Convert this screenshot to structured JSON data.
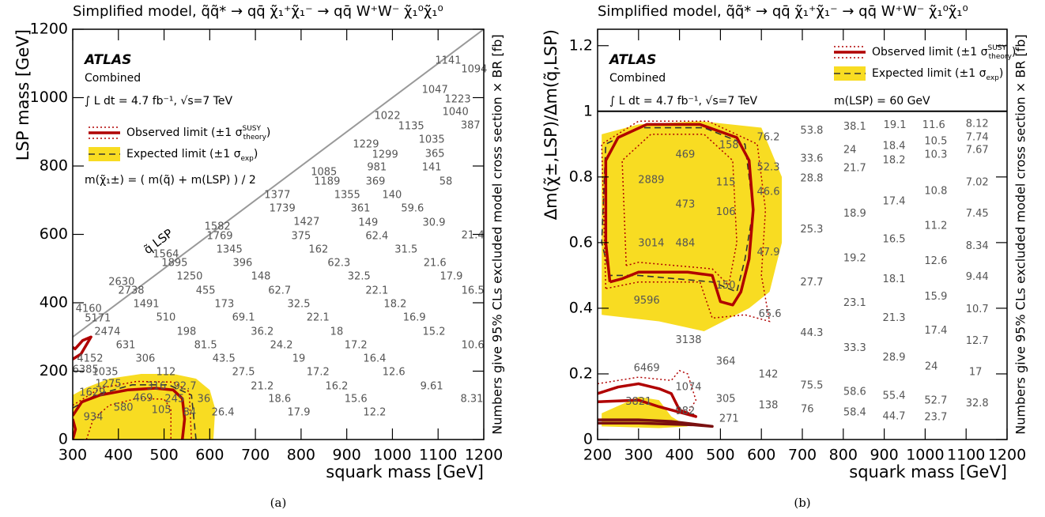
{
  "chart_data": [
    {
      "type": "contour",
      "title": "Simplified model, q̃q̃* → qq̄ χ̃₁⁺χ̃₁⁻ → qq̄ W⁺W⁻ χ̃₁⁰χ̃₁⁰",
      "xlabel": "squark mass [GeV]",
      "ylabel": "LSP mass [GeV]",
      "zlabel": "Numbers give 95% CLs excluded model cross section × BR [fb]",
      "experiment": "ATLAS",
      "label": "Combined",
      "lumi": "∫ L dt = 4.7 fb⁻¹, √s=7 TeV",
      "note": "m(χ̃₁±) = ( m(q̃) + m(LSP) ) / 2",
      "diagonal_label": "q̃ LSP",
      "caption": "(a)",
      "legend": [
        {
          "text": "Observed limit (±1 σ",
          "sup": "SUSY",
          "sub": "theory",
          "end": ")",
          "sample": "observed"
        },
        {
          "text": "Expected limit (±1 σ",
          "sub": "exp",
          "end": ")",
          "sample": "expected"
        }
      ],
      "xlim": [
        300,
        1200
      ],
      "ylim": [
        0,
        1200
      ],
      "xticks": [
        300,
        400,
        500,
        600,
        700,
        800,
        900,
        1000,
        1100,
        1200
      ],
      "yticks": [
        0,
        200,
        400,
        600,
        800,
        1000,
        1200
      ],
      "diagonal_line": {
        "x": [
          300,
          1200
        ],
        "y": [
          300,
          1200
        ]
      },
      "points": {
        "x": [
          1122,
          1179,
          1093,
          1143,
          1138,
          1171,
          989,
          1041,
          1086,
          1093,
          1086,
          1117,
          942,
          984,
          966,
          963,
          999,
          1044,
          1091,
          1176,
          850,
          857,
          901,
          930,
          947,
          966,
          1030,
          1093,
          1129,
          1176,
          748,
          759,
          812,
          800,
          838,
          883,
          927,
          966,
          1006,
          1048,
          1091,
          1176,
          617,
          622,
          643,
          672,
          712,
          753,
          795,
          837,
          878,
          920,
          961,
          1003,
          1086,
          1174,
          504,
          523,
          556,
          591,
          632,
          674,
          715,
          757,
          795,
          837,
          878,
          920,
          961,
          407,
          428,
          461,
          504,
          549,
          591,
          631,
          674,
          715,
          753,
          795,
          335,
          355,
          376,
          416,
          459,
          504,
          546,
          587,
          629,
          338,
          328,
          371,
          378,
          483,
          343,
          454,
          523,
          411,
          345,
          494,
          556
        ],
        "y": [
          1107,
          1082,
          1022,
          994,
          957,
          918,
          946,
          916,
          876,
          835,
          795,
          754,
          862,
          832,
          795,
          754,
          714,
          675,
          633,
          596,
          781,
          754,
          714,
          675,
          633,
          594,
          555,
          516,
          476,
          435,
          714,
          675,
          636,
          594,
          555,
          516,
          476,
          435,
          395,
          356,
          314,
          275,
          622,
          594,
          555,
          516,
          476,
          435,
          395,
          356,
          314,
          275,
          236,
          197,
          155,
          118,
          541,
          516,
          476,
          435,
          395,
          356,
          314,
          275,
          236,
          197,
          155,
          118,
          79,
          460,
          435,
          395,
          356,
          314,
          275,
          236,
          197,
          155,
          118,
          79,
          381,
          354,
          314,
          275,
          236,
          197,
          155,
          118,
          79,
          236,
          203,
          197,
          162,
          155,
          136,
          120,
          118,
          92,
          65,
          86,
          79
        ],
        "values": [
          1141,
          1094,
          1047,
          1223,
          1040,
          387,
          1022,
          1135,
          1035,
          365,
          141,
          58,
          1229,
          1299,
          981,
          369,
          140,
          59.6,
          30.9,
          21.4,
          1085,
          1189,
          1355,
          361,
          149,
          62.4,
          31.5,
          21.6,
          17.9,
          16.5,
          1377,
          1739,
          1427,
          375,
          162,
          62.3,
          32.5,
          22.1,
          18.2,
          16.9,
          15.2,
          10.6,
          1582,
          1769,
          1345,
          396,
          148,
          62.7,
          32.5,
          22.1,
          18,
          17.2,
          16.4,
          12.6,
          9.61,
          8.31,
          1564,
          1895,
          1250,
          455,
          173,
          69.1,
          36.2,
          24.2,
          19,
          17.2,
          16.2,
          15.6,
          12.2,
          2630,
          2738,
          1491,
          510,
          198,
          81.5,
          43.5,
          27.5,
          21.2,
          18.6,
          17.9,
          4160,
          5171,
          2474,
          631,
          306,
          112,
          92.7,
          36,
          26.4,
          4152,
          6385,
          1035,
          1275,
          316,
          1629,
          469,
          245,
          580,
          934,
          105,
          84
        ]
      },
      "contours": [
        {
          "style": "band",
          "color": "#f8dc22",
          "x": [
            300,
            300,
            330,
            380,
            450,
            520,
            570,
            600,
            612,
            608,
            300
          ],
          "y": [
            0,
            130,
            152,
            178,
            192,
            192,
            178,
            145,
            90,
            0,
            0
          ]
        },
        {
          "style": "dashed",
          "color": "#333333",
          "x": [
            300,
            350,
            430,
            510,
            560,
            570
          ],
          "y": [
            92,
            130,
            160,
            160,
            130,
            0
          ]
        },
        {
          "style": "dotted",
          "color": "#b00000",
          "x": [
            330,
            345,
            380,
            440,
            500,
            515,
            515
          ],
          "y": [
            0,
            60,
            100,
            120,
            118,
            90,
            0
          ]
        },
        {
          "style": "dotted",
          "color": "#b00000",
          "x": [
            300,
            360,
            440,
            520,
            555,
            560
          ],
          "y": [
            100,
            150,
            170,
            168,
            140,
            0
          ]
        },
        {
          "style": "solid",
          "color": "#b00000",
          "x": [
            300,
            320,
            360,
            420,
            480,
            520,
            540,
            545,
            540
          ],
          "y": [
            70,
            110,
            130,
            145,
            150,
            145,
            120,
            60,
            0
          ]
        },
        {
          "style": "solid",
          "color": "#b00000",
          "x": [
            300,
            306,
            300
          ],
          "y": [
            0,
            30,
            60
          ]
        },
        {
          "style": "solid",
          "color": "#b00000",
          "x": [
            300,
            318,
            340,
            322,
            305,
            300
          ],
          "y": [
            235,
            250,
            300,
            290,
            265,
            270
          ]
        }
      ]
    },
    {
      "type": "contour",
      "title": "Simplified model, q̃q̃* → qq̄ χ̃₁⁺χ̃₁⁻ → qq̄ W⁺W⁻ χ̃₁⁰χ̃₁⁰",
      "xlabel": "squark mass [GeV]",
      "ylabel": "Δm(χ̃±,LSP)/Δm(q̃,LSP)",
      "zlabel": "Numbers give 95% CLs excluded model cross section × BR [fb]",
      "experiment": "ATLAS",
      "label": "Combined",
      "lumi": "∫ L dt = 4.7 fb⁻¹, √s=7 TeV",
      "note": "m(LSP) = 60 GeV",
      "caption": "(b)",
      "legend": [
        {
          "text": "Observed limit (±1 σ",
          "sup": "SUSY",
          "sub": "theory",
          "end": ")",
          "sample": "observed"
        },
        {
          "text": "Expected limit (±1 σ",
          "sub": "exp",
          "end": ")",
          "sample": "expected"
        }
      ],
      "xlim": [
        200,
        1200
      ],
      "ylim": [
        0,
        1.25
      ],
      "xticks": [
        200,
        300,
        400,
        500,
        600,
        700,
        800,
        900,
        1000,
        1100,
        1200
      ],
      "yticks": [
        0,
        0.2,
        0.4,
        0.6,
        0.8,
        1,
        1.2
      ],
      "reference_line": 1,
      "points": {
        "x": [
          617,
          723,
          828,
          926,
          1021,
          1127,
          1127,
          1026,
          1026,
          1127,
          816,
          924,
          924,
          723,
          828,
          723,
          617,
          1127,
          1026,
          924,
          617,
          1127,
          828,
          1026,
          723,
          924,
          1127,
          617,
          828,
          1026,
          1127,
          924,
          723,
          1026,
          828,
          1127,
          621,
          924,
          1026,
          723,
          1127,
          828,
          924,
          513,
          1015,
          617,
          1123,
          723,
          828,
          924,
          1026,
          1127,
          513,
          617,
          712,
          828,
          924,
          1026,
          521,
          414,
          521,
          331,
          513,
          414,
          513,
          331,
          414,
          513,
          320,
          422,
          320,
          422,
          300,
          414
        ],
        "y": [
          0.92,
          0.94,
          0.952,
          0.957,
          0.957,
          0.961,
          0.92,
          0.908,
          0.867,
          0.882,
          0.882,
          0.894,
          0.85,
          0.855,
          0.826,
          0.795,
          0.829,
          0.783,
          0.756,
          0.725,
          0.754,
          0.688,
          0.688,
          0.65,
          0.64,
          0.609,
          0.589,
          0.57,
          0.551,
          0.543,
          0.495,
          0.488,
          0.478,
          0.435,
          0.415,
          0.396,
          0.382,
          0.37,
          0.331,
          0.324,
          0.3,
          0.278,
          0.249,
          0.237,
          0.222,
          0.198,
          0.205,
          0.164,
          0.145,
          0.133,
          0.118,
          0.109,
          0.123,
          0.104,
          0.092,
          0.082,
          0.07,
          0.068,
          0.063,
          0.867,
          0.896,
          0.79,
          0.783,
          0.715,
          0.693,
          0.597,
          0.597,
          0.469,
          0.423,
          0.302,
          0.217,
          0.159,
          0.114,
          0.085
        ],
        "values": [
          76.2,
          53.8,
          38.1,
          19.1,
          11.6,
          8.12,
          7.74,
          10.5,
          10.3,
          7.67,
          24,
          18.4,
          18.2,
          33.6,
          21.7,
          28.8,
          52.3,
          7.02,
          10.8,
          17.4,
          46.6,
          7.45,
          18.9,
          11.2,
          25.3,
          16.5,
          8.34,
          47.9,
          19.2,
          12.6,
          9.44,
          18.1,
          27.7,
          15.9,
          23.1,
          10.7,
          65.6,
          21.3,
          17.4,
          44.3,
          12.7,
          33.3,
          28.9,
          364,
          24,
          142,
          17,
          75.5,
          58.6,
          55.4,
          52.7,
          32.8,
          305,
          138,
          76,
          58.4,
          44.7,
          23.7,
          271,
          469,
          158,
          2889,
          115,
          473,
          106,
          3014,
          484,
          150,
          9596,
          3138,
          6469,
          1074,
          3821,
          982
        ]
      },
      "contours": [
        {
          "style": "band",
          "color": "#f8dc22",
          "x": [
            210,
            210,
            300,
            450,
            600,
            650,
            650,
            620,
            570,
            460,
            350,
            210
          ],
          "y": [
            0.38,
            0.93,
            0.96,
            0.97,
            0.95,
            0.8,
            0.6,
            0.45,
            0.4,
            0.33,
            0.36,
            0.38
          ]
        },
        {
          "style": "band",
          "color": "#f8dc22",
          "x": [
            210,
            210,
            300,
            350,
            380,
            420,
            350,
            210
          ],
          "y": [
            0.04,
            0.08,
            0.13,
            0.12,
            0.07,
            0.04,
            0.035,
            0.04
          ]
        },
        {
          "style": "dashed",
          "color": "#333333",
          "x": [
            230,
            210,
            220,
            300,
            460,
            560,
            580,
            560,
            540,
            480,
            300,
            230
          ],
          "y": [
            0.5,
            0.6,
            0.9,
            0.95,
            0.95,
            0.9,
            0.7,
            0.55,
            0.45,
            0.48,
            0.5,
            0.5
          ]
        },
        {
          "style": "dotted",
          "color": "#b00000",
          "x": [
            270,
            260,
            330,
            460,
            530,
            540,
            520,
            480,
            300,
            270
          ],
          "y": [
            0.53,
            0.85,
            0.93,
            0.93,
            0.85,
            0.6,
            0.47,
            0.52,
            0.54,
            0.53
          ]
        },
        {
          "style": "dotted",
          "color": "#b00000",
          "x": [
            220,
            210,
            300,
            470,
            590,
            610,
            600,
            620,
            560,
            480,
            450,
            300,
            220
          ],
          "y": [
            0.46,
            0.9,
            0.97,
            0.97,
            0.9,
            0.7,
            0.5,
            0.36,
            0.38,
            0.37,
            0.48,
            0.48,
            0.46
          ]
        },
        {
          "style": "solid",
          "color": "#b00000",
          "x": [
            230,
            220,
            220,
            250,
            320,
            450,
            540,
            570,
            580,
            570,
            550,
            530,
            500,
            480,
            420,
            300,
            260,
            230
          ],
          "y": [
            0.48,
            0.6,
            0.85,
            0.92,
            0.96,
            0.96,
            0.92,
            0.85,
            0.7,
            0.55,
            0.45,
            0.41,
            0.42,
            0.5,
            0.51,
            0.51,
            0.49,
            0.48
          ]
        },
        {
          "style": "dotted",
          "color": "#b00000",
          "x": [
            200,
            300,
            380,
            400,
            420,
            440,
            420
          ],
          "y": [
            0.17,
            0.19,
            0.18,
            0.21,
            0.2,
            0.12,
            0.08
          ]
        },
        {
          "style": "solid",
          "color": "#b00000",
          "x": [
            200,
            250,
            300,
            350,
            380,
            400,
            440,
            350,
            300,
            200
          ],
          "y": [
            0.14,
            0.16,
            0.17,
            0.155,
            0.14,
            0.09,
            0.07,
            0.1,
            0.12,
            0.115
          ]
        },
        {
          "style": "solid",
          "color": "#7a1010",
          "x": [
            200,
            300,
            380,
            480,
            430,
            300,
            200
          ],
          "y": [
            0.06,
            0.06,
            0.055,
            0.04,
            0.045,
            0.05,
            0.05
          ]
        }
      ]
    }
  ]
}
